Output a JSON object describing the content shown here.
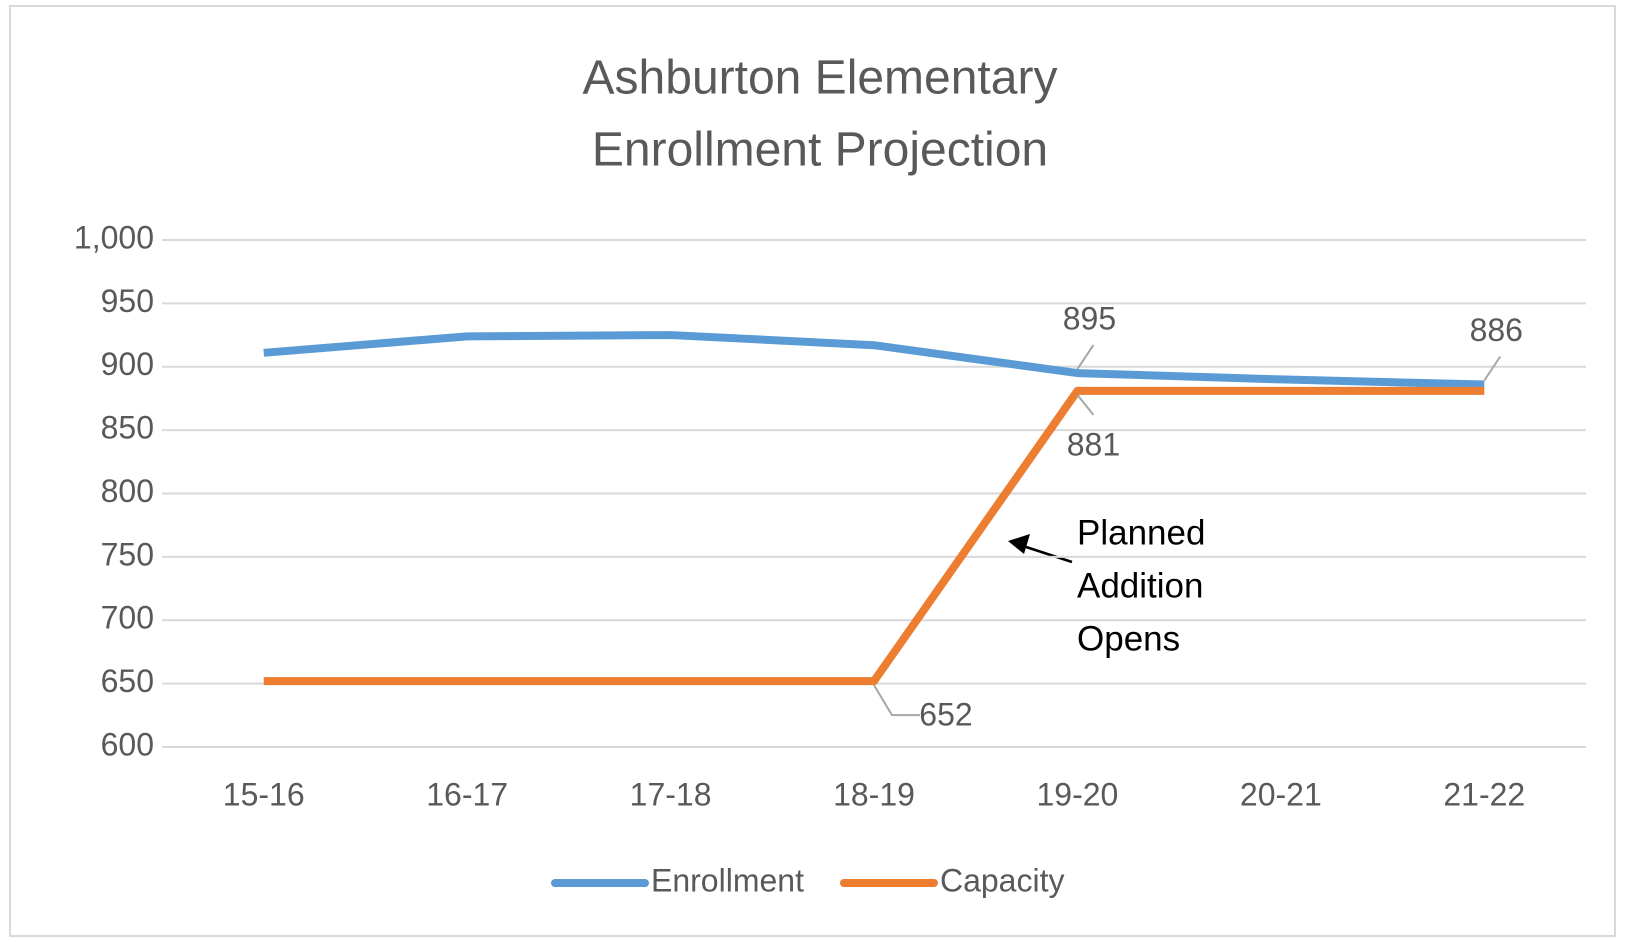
{
  "chart_data": {
    "type": "line",
    "title": [
      "Ashburton Elementary",
      "Enrollment Projection"
    ],
    "categories": [
      "15-16",
      "16-17",
      "17-18",
      "18-19",
      "19-20",
      "20-21",
      "21-22"
    ],
    "series": [
      {
        "name": "Enrollment",
        "color": "#5b9bd5",
        "values": [
          911,
          924,
          925,
          917,
          895,
          890,
          886
        ],
        "label_indices": [
          4,
          6
        ]
      },
      {
        "name": "Capacity",
        "color": "#ed7d31",
        "values": [
          652,
          652,
          652,
          652,
          881,
          881,
          881
        ],
        "label_indices": [
          3,
          4
        ]
      }
    ],
    "ylim": [
      600,
      1000
    ],
    "yticks": [
      600,
      650,
      700,
      750,
      800,
      850,
      900,
      950,
      {
        "value": 1000,
        "label": "1,000"
      }
    ],
    "grid": true,
    "legend": "bottom",
    "annotation": {
      "lines": [
        "Planned",
        "Addition",
        "Opens"
      ]
    }
  }
}
